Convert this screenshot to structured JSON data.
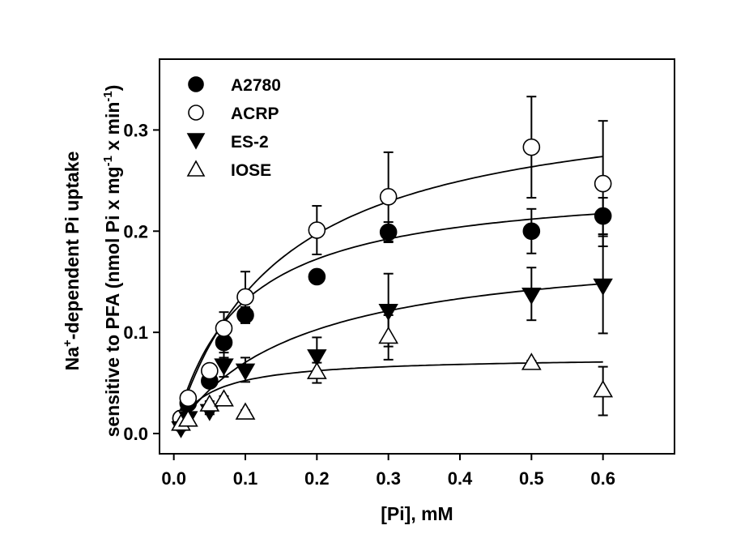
{
  "chart_data": {
    "type": "scatter",
    "title": "",
    "xlabel": "[Pi], mM",
    "ylabel": {
      "line1_prefix": "Na",
      "line1_sup": "+",
      "line1_suffix": "-dependent Pi uptake",
      "line2_prefix": "sensitive to PFA (nmol Pi x mg",
      "line2_sup1": "-1",
      "line2_middle": " x min",
      "line2_sup2": "-1",
      "line2_suffix": ")"
    },
    "xlim": [
      -0.02,
      0.7
    ],
    "ylim": [
      -0.02,
      0.37
    ],
    "xticks": [
      0.0,
      0.1,
      0.2,
      0.3,
      0.4,
      0.5,
      0.6
    ],
    "xtick_labels": [
      "0.0",
      "0.1",
      "0.2",
      "0.3",
      "0.4",
      "0.5",
      "0.6"
    ],
    "yticks": [
      0.0,
      0.1,
      0.2,
      0.3
    ],
    "ytick_labels": [
      "0.0",
      "0.1",
      "0.2",
      "0.3"
    ],
    "legend_position": "top-left",
    "series": [
      {
        "name": "A2780",
        "marker": "circle-filled",
        "x": [
          0.01,
          0.02,
          0.05,
          0.07,
          0.1,
          0.2,
          0.3,
          0.5,
          0.6
        ],
        "y": [
          0.015,
          0.03,
          0.052,
          0.09,
          0.117,
          0.155,
          0.199,
          0.2,
          0.215
        ],
        "err": [
          0.004,
          0.004,
          0.006,
          0.015,
          0.008,
          0.006,
          0.01,
          0.022,
          0.018
        ],
        "fit": {
          "vmax": 0.25,
          "km": 0.09
        }
      },
      {
        "name": "ACRP",
        "marker": "circle-open",
        "x": [
          0.01,
          0.02,
          0.05,
          0.07,
          0.1,
          0.2,
          0.3,
          0.5,
          0.6
        ],
        "y": [
          0.015,
          0.035,
          0.062,
          0.104,
          0.135,
          0.201,
          0.234,
          0.283,
          0.247
        ],
        "err": [
          0.004,
          0.004,
          0.006,
          0.016,
          0.025,
          0.024,
          0.044,
          0.05,
          0.062
        ],
        "fit": {
          "vmax": 0.34,
          "km": 0.145
        }
      },
      {
        "name": "ES-2",
        "marker": "triangle-down-filled",
        "x": [
          0.01,
          0.02,
          0.05,
          0.07,
          0.1,
          0.2,
          0.3,
          0.5,
          0.6
        ],
        "y": [
          0.006,
          0.016,
          0.023,
          0.068,
          0.063,
          0.077,
          0.122,
          0.138,
          0.147
        ],
        "err": [
          0.003,
          0.003,
          0.004,
          0.012,
          0.012,
          0.018,
          0.036,
          0.026,
          0.048
        ],
        "fit": {
          "vmax": 0.19,
          "km": 0.17
        }
      },
      {
        "name": "IOSE",
        "marker": "triangle-up-open",
        "x": [
          0.01,
          0.02,
          0.05,
          0.07,
          0.1,
          0.2,
          0.3,
          0.5,
          0.6
        ],
        "y": [
          0.009,
          0.013,
          0.028,
          0.033,
          0.02,
          0.06,
          0.095,
          0.069,
          0.042
        ],
        "err": [
          0.003,
          0.003,
          0.004,
          0.004,
          0.003,
          0.01,
          0.022,
          0.003,
          0.024
        ],
        "fit": {
          "vmax": 0.076,
          "km": 0.045
        }
      }
    ]
  }
}
